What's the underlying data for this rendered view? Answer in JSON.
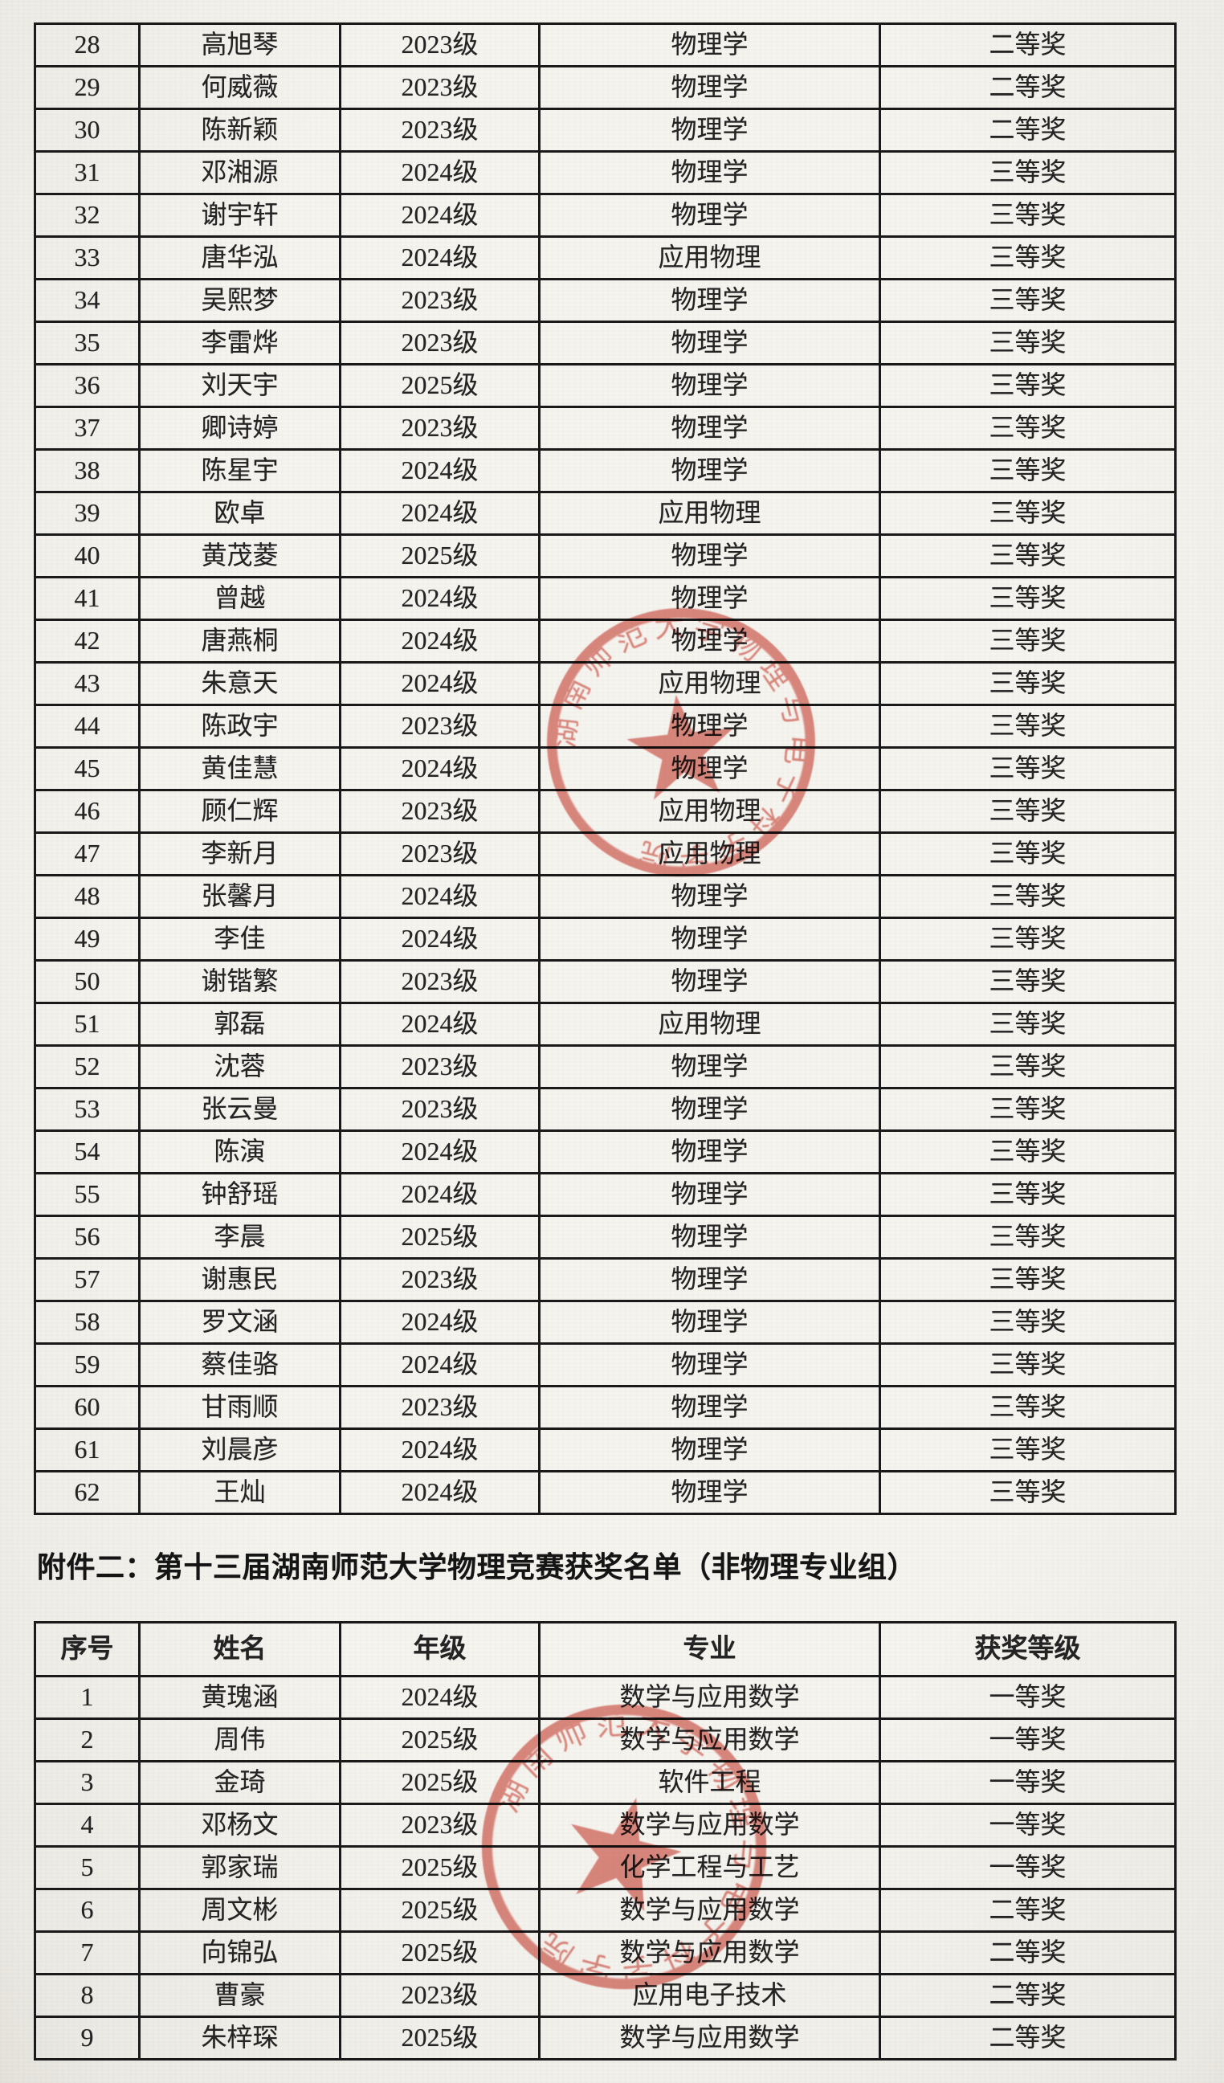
{
  "document": {
    "attachment_title": "附件二：第十三届湖南师范大学物理竞赛获奖名单（非物理专业组）"
  },
  "seal": {
    "text": "湖南师范大学物理与电子科学学院",
    "color": "#cf4a3e"
  },
  "table1": {
    "rows": [
      [
        "28",
        "高旭琴",
        "2023级",
        "物理学",
        "二等奖"
      ],
      [
        "29",
        "何威薇",
        "2023级",
        "物理学",
        "二等奖"
      ],
      [
        "30",
        "陈新颖",
        "2023级",
        "物理学",
        "二等奖"
      ],
      [
        "31",
        "邓湘源",
        "2024级",
        "物理学",
        "三等奖"
      ],
      [
        "32",
        "谢宇轩",
        "2024级",
        "物理学",
        "三等奖"
      ],
      [
        "33",
        "唐华泓",
        "2024级",
        "应用物理",
        "三等奖"
      ],
      [
        "34",
        "吴熙梦",
        "2023级",
        "物理学",
        "三等奖"
      ],
      [
        "35",
        "李雷烨",
        "2023级",
        "物理学",
        "三等奖"
      ],
      [
        "36",
        "刘天宇",
        "2025级",
        "物理学",
        "三等奖"
      ],
      [
        "37",
        "卿诗婷",
        "2023级",
        "物理学",
        "三等奖"
      ],
      [
        "38",
        "陈星宇",
        "2024级",
        "物理学",
        "三等奖"
      ],
      [
        "39",
        "欧卓",
        "2024级",
        "应用物理",
        "三等奖"
      ],
      [
        "40",
        "黄茂菱",
        "2025级",
        "物理学",
        "三等奖"
      ],
      [
        "41",
        "曾越",
        "2024级",
        "物理学",
        "三等奖"
      ],
      [
        "42",
        "唐燕桐",
        "2024级",
        "物理学",
        "三等奖"
      ],
      [
        "43",
        "朱意天",
        "2024级",
        "应用物理",
        "三等奖"
      ],
      [
        "44",
        "陈政宇",
        "2023级",
        "物理学",
        "三等奖"
      ],
      [
        "45",
        "黄佳慧",
        "2024级",
        "物理学",
        "三等奖"
      ],
      [
        "46",
        "顾仁辉",
        "2023级",
        "应用物理",
        "三等奖"
      ],
      [
        "47",
        "李新月",
        "2023级",
        "应用物理",
        "三等奖"
      ],
      [
        "48",
        "张馨月",
        "2024级",
        "物理学",
        "三等奖"
      ],
      [
        "49",
        "李佳",
        "2024级",
        "物理学",
        "三等奖"
      ],
      [
        "50",
        "谢锴繁",
        "2023级",
        "物理学",
        "三等奖"
      ],
      [
        "51",
        "郭磊",
        "2024级",
        "应用物理",
        "三等奖"
      ],
      [
        "52",
        "沈蓉",
        "2023级",
        "物理学",
        "三等奖"
      ],
      [
        "53",
        "张云曼",
        "2023级",
        "物理学",
        "三等奖"
      ],
      [
        "54",
        "陈演",
        "2024级",
        "物理学",
        "三等奖"
      ],
      [
        "55",
        "钟舒瑶",
        "2024级",
        "物理学",
        "三等奖"
      ],
      [
        "56",
        "李晨",
        "2025级",
        "物理学",
        "三等奖"
      ],
      [
        "57",
        "谢惠民",
        "2023级",
        "物理学",
        "三等奖"
      ],
      [
        "58",
        "罗文涵",
        "2024级",
        "物理学",
        "三等奖"
      ],
      [
        "59",
        "蔡佳骆",
        "2024级",
        "物理学",
        "三等奖"
      ],
      [
        "60",
        "甘雨顺",
        "2023级",
        "物理学",
        "三等奖"
      ],
      [
        "61",
        "刘晨彦",
        "2024级",
        "物理学",
        "三等奖"
      ],
      [
        "62",
        "王灿",
        "2024级",
        "物理学",
        "三等奖"
      ]
    ]
  },
  "table2": {
    "headers": [
      "序号",
      "姓名",
      "年级",
      "专业",
      "获奖等级"
    ],
    "rows": [
      [
        "1",
        "黄瑰涵",
        "2024级",
        "数学与应用数学",
        "一等奖"
      ],
      [
        "2",
        "周伟",
        "2025级",
        "数学与应用数学",
        "一等奖"
      ],
      [
        "3",
        "金琦",
        "2025级",
        "软件工程",
        "一等奖"
      ],
      [
        "4",
        "邓杨文",
        "2023级",
        "数学与应用数学",
        "一等奖"
      ],
      [
        "5",
        "郭家瑞",
        "2025级",
        "化学工程与工艺",
        "一等奖"
      ],
      [
        "6",
        "周文彬",
        "2025级",
        "数学与应用数学",
        "二等奖"
      ],
      [
        "7",
        "向锦弘",
        "2025级",
        "数学与应用数学",
        "二等奖"
      ],
      [
        "8",
        "曹豪",
        "2023级",
        "应用电子技术",
        "二等奖"
      ],
      [
        "9",
        "朱梓琛",
        "2025级",
        "数学与应用数学",
        "二等奖"
      ]
    ]
  }
}
